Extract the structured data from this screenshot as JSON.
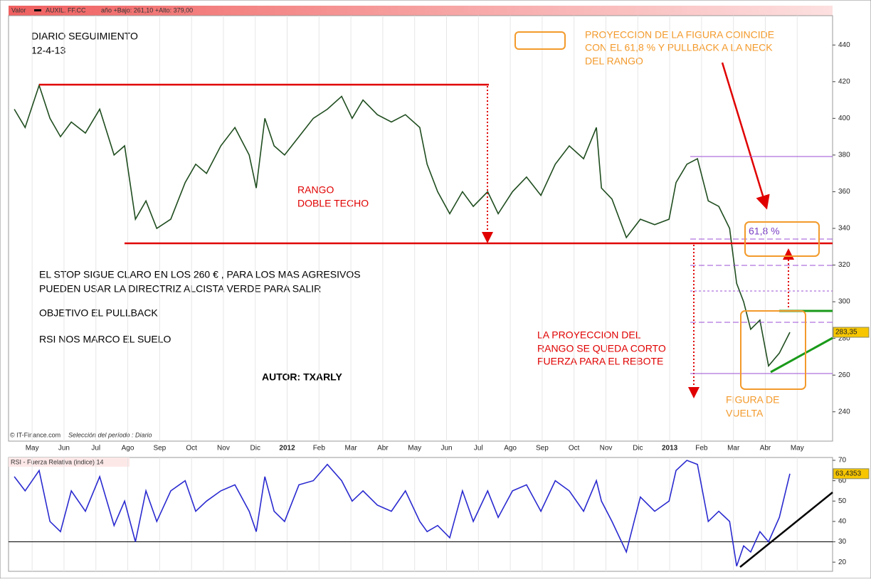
{
  "header": {
    "label": "Valor",
    "symbol": "AUXIL. FF.CC",
    "range": "año +Bajo: 261,10 +Alto: 379,00"
  },
  "footer": {
    "source": "© IT-Finance.com",
    "period": "Selección del período : Diario"
  },
  "chart_data": [
    {
      "type": "line",
      "annotations": [
        "DIARIO  SEGUIMIENTO",
        "12-4-13",
        "RANGO",
        "DOBLE  TECHO",
        "EL STOP  SIGUE  CLARO  EN  LOS  260 €  , PARA  LOS  MAS  AGRESIVOS",
        "PUEDEN  USAR  LA  DIRECTRIZ  ALCISTA  VERDE  PARA  SALIR",
        "OBJETIVO   EL  PULLBACK",
        "RSI   NOS  MARCO  EL  SUELO",
        "AUTOR: TXARLY",
        "PROYECCION  DE  LA  FIGURA  COINCIDE",
        "CON  EL  61,8 %   Y  PULLBACK  A LA  NECK",
        "DEL  RANGO",
        "61,8  %",
        "LA PROYECCION  DEL",
        "RANGO  SE  QUEDA CORTO",
        "FUERZA  PARA EL  REBOTE",
        "FIGURA  DE",
        "VUELTA"
      ],
      "x": [
        -0.56,
        -0.22,
        0.22,
        0.56,
        0.89,
        1.23,
        1.67,
        2.12,
        2.57,
        2.9,
        3.24,
        3.57,
        3.91,
        4.35,
        4.8,
        5.13,
        5.47,
        5.92,
        6.36,
        6.81,
        7.03,
        7.3,
        7.59,
        7.92,
        8.37,
        8.82,
        9.26,
        9.71,
        10.04,
        10.38,
        10.83,
        11.27,
        11.71,
        12.16,
        12.39,
        12.72,
        13.1,
        13.5,
        13.84,
        14.29,
        14.62,
        15.07,
        15.51,
        15.96,
        16.41,
        16.85,
        17.3,
        17.7,
        17.86,
        18.19,
        18.64,
        19.08,
        19.53,
        19.98,
        20.2,
        20.54,
        20.87,
        21.21,
        21.54,
        21.88,
        22.1,
        22.32,
        22.54,
        22.83,
        23.1,
        23.44,
        23.77
      ],
      "series": [
        {
          "name": "AUXIL. FF.CC",
          "color": "#1f4d1f",
          "values": [
            405,
            395,
            418,
            400,
            390,
            398,
            392,
            405,
            380,
            385,
            345,
            355,
            340,
            345,
            365,
            375,
            370,
            385,
            395,
            380,
            362,
            400,
            385,
            380,
            390,
            400,
            405,
            412,
            400,
            410,
            402,
            398,
            402,
            395,
            375,
            360,
            348,
            360,
            352,
            360,
            348,
            360,
            368,
            358,
            375,
            385,
            378,
            395,
            362,
            356,
            335,
            345,
            342,
            345,
            365,
            375,
            378,
            355,
            352,
            340,
            310,
            300,
            285,
            290,
            265,
            272,
            283.35
          ]
        }
      ],
      "last_marker": {
        "value": 283.35,
        "label": "283,35"
      },
      "xlim": [
        -0.74,
        25.11
      ],
      "xticks": [
        {
          "value": 0,
          "label": "May"
        },
        {
          "value": 1,
          "label": "Jun"
        },
        {
          "value": 2,
          "label": "Jul"
        },
        {
          "value": 3,
          "label": "Ago"
        },
        {
          "value": 4,
          "label": "Sep"
        },
        {
          "value": 5,
          "label": "Oct"
        },
        {
          "value": 6,
          "label": "Nov"
        },
        {
          "value": 7,
          "label": "Dic"
        },
        {
          "value": 8,
          "label": "2012"
        },
        {
          "value": 9,
          "label": "Feb"
        },
        {
          "value": 10,
          "label": "Mar"
        },
        {
          "value": 11,
          "label": "Abr"
        },
        {
          "value": 12,
          "label": "May"
        },
        {
          "value": 13,
          "label": "Jun"
        },
        {
          "value": 14,
          "label": "Jul"
        },
        {
          "value": 15,
          "label": "Ago"
        },
        {
          "value": 16,
          "label": "Sep"
        },
        {
          "value": 17,
          "label": "Oct"
        },
        {
          "value": 18,
          "label": "Nov"
        },
        {
          "value": 19,
          "label": "Dic"
        },
        {
          "value": 20,
          "label": "2013"
        },
        {
          "value": 21,
          "label": "Feb"
        },
        {
          "value": 22,
          "label": "Mar"
        },
        {
          "value": 23,
          "label": "Abr"
        },
        {
          "value": 24,
          "label": "May"
        }
      ],
      "ylim": [
        224,
        456
      ],
      "yticks": [
        240,
        260,
        280,
        300,
        320,
        340,
        360,
        380,
        400,
        420,
        440
      ]
    },
    {
      "type": "line",
      "title": "RSI - Fuerza Relativa (indice) 14",
      "x": [
        -0.56,
        -0.22,
        0.22,
        0.56,
        0.89,
        1.23,
        1.67,
        2.12,
        2.57,
        2.9,
        3.24,
        3.57,
        3.91,
        4.35,
        4.8,
        5.13,
        5.47,
        5.92,
        6.36,
        6.81,
        7.03,
        7.3,
        7.59,
        7.92,
        8.37,
        8.82,
        9.26,
        9.71,
        10.04,
        10.38,
        10.83,
        11.27,
        11.71,
        12.16,
        12.39,
        12.72,
        13.1,
        13.5,
        13.84,
        14.29,
        14.62,
        15.07,
        15.51,
        15.96,
        16.41,
        16.85,
        17.3,
        17.7,
        17.86,
        18.19,
        18.64,
        19.08,
        19.53,
        19.98,
        20.2,
        20.54,
        20.87,
        21.21,
        21.54,
        21.88,
        22.1,
        22.32,
        22.54,
        22.83,
        23.1,
        23.44,
        23.77
      ],
      "series": [
        {
          "name": "RSI",
          "color": "#2a2ad0",
          "values": [
            62,
            55,
            65,
            40,
            35,
            55,
            45,
            62,
            38,
            50,
            30,
            55,
            40,
            55,
            60,
            45,
            50,
            55,
            58,
            45,
            35,
            62,
            45,
            40,
            58,
            60,
            68,
            60,
            50,
            55,
            48,
            45,
            55,
            40,
            35,
            38,
            32,
            55,
            40,
            55,
            42,
            55,
            58,
            45,
            60,
            55,
            45,
            60,
            50,
            40,
            25,
            52,
            45,
            50,
            65,
            70,
            68,
            40,
            45,
            40,
            18,
            28,
            25,
            35,
            30,
            42,
            63.4353
          ]
        }
      ],
      "last_marker": {
        "value": 63.4353,
        "label": "63,4353"
      },
      "xlim": [
        -0.74,
        25.11
      ],
      "ylim": [
        15.5,
        71.4
      ],
      "yticks": [
        20,
        30,
        40,
        50,
        60,
        70
      ],
      "hlines": [
        30
      ]
    }
  ]
}
